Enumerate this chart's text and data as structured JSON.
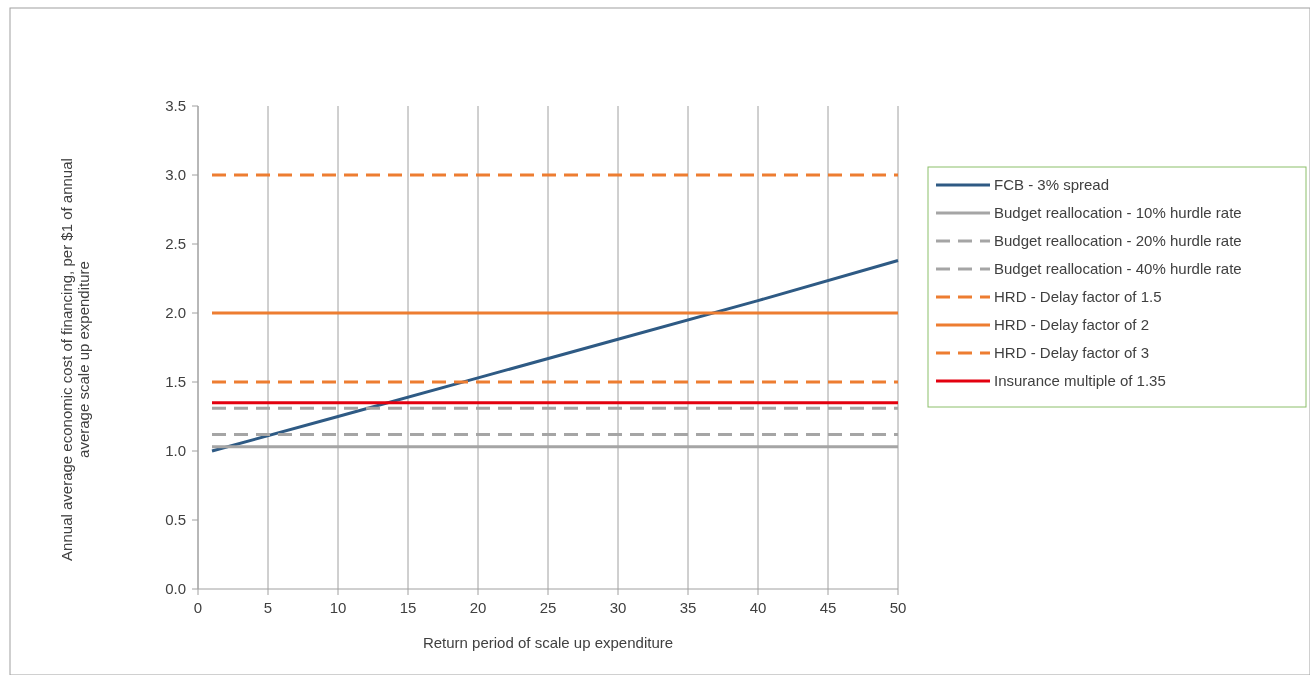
{
  "chart_data": {
    "type": "line",
    "xlabel": "Return period of scale up expenditure",
    "ylabel": "Annual average economic cost of financing, per $1 of annual average scale up expenditure",
    "xlim": [
      0,
      50
    ],
    "xticks": [
      0,
      5,
      10,
      15,
      20,
      25,
      30,
      35,
      40,
      45,
      50
    ],
    "ylim": [
      0,
      3.5
    ],
    "yticks": [
      {
        "value": 0,
        "label": "0.0"
      },
      {
        "value": 0.5,
        "label": "0.5"
      },
      {
        "value": 1,
        "label": "1.0"
      },
      {
        "value": 1.5,
        "label": "1.5"
      },
      {
        "value": 2,
        "label": "2.0"
      },
      {
        "value": 2.5,
        "label": "2.5"
      },
      {
        "value": 3,
        "label": "3.0"
      },
      {
        "value": 3.5,
        "label": "3.5"
      }
    ],
    "grid": "x",
    "legend": "right",
    "series": [
      {
        "name": "FCB - 3% spread",
        "color": "#2e5a84",
        "line_style": "solid",
        "x": [
          1,
          10,
          20,
          30,
          40,
          50
        ],
        "values": [
          1.0,
          1.25,
          1.53,
          1.81,
          2.09,
          2.38
        ]
      },
      {
        "name": "Budget reallocation - 10% hurdle rate",
        "color": "#a5a5a5",
        "line_style": "solid",
        "x": [
          1,
          50
        ],
        "values": [
          1.03,
          1.03
        ]
      },
      {
        "name": "Budget reallocation - 20% hurdle rate",
        "color": "#a5a5a5",
        "line_style": "dashed",
        "x": [
          1,
          50
        ],
        "values": [
          1.12,
          1.12
        ]
      },
      {
        "name": "Budget reallocation - 40% hurdle rate",
        "color": "#a5a5a5",
        "line_style": "dashed",
        "x": [
          1,
          50
        ],
        "values": [
          1.31,
          1.31
        ]
      },
      {
        "name": "HRD - Delay factor of 1.5",
        "color": "#ed7d31",
        "line_style": "dashed",
        "x": [
          1,
          50
        ],
        "values": [
          1.5,
          1.5
        ]
      },
      {
        "name": "HRD - Delay factor of 2",
        "color": "#ed7d31",
        "line_style": "solid",
        "x": [
          1,
          50
        ],
        "values": [
          2.0,
          2.0
        ]
      },
      {
        "name": "HRD - Delay factor of 3",
        "color": "#ed7d31",
        "line_style": "dashed",
        "x": [
          1,
          50
        ],
        "values": [
          3.0,
          3.0
        ]
      },
      {
        "name": "Insurance multiple of 1.35",
        "color": "#e3000f",
        "line_style": "solid",
        "x": [
          1,
          50
        ],
        "values": [
          1.35,
          1.35
        ]
      }
    ]
  }
}
